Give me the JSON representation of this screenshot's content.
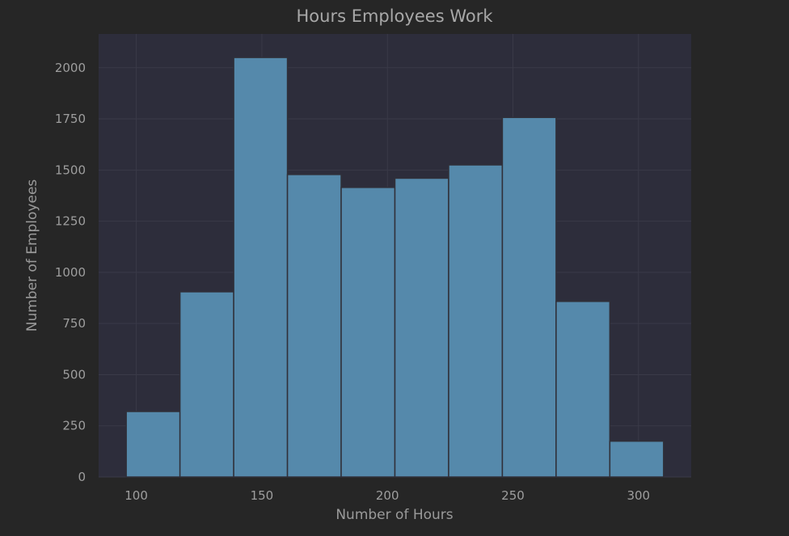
{
  "chart_data": {
    "type": "bar",
    "title": "Hours Employees Work",
    "xlabel": "Number of Hours",
    "ylabel": "Number of Employees",
    "bin_edges": [
      96,
      117.4,
      138.8,
      160.2,
      181.6,
      203,
      224.4,
      245.8,
      267.2,
      288.6,
      310
    ],
    "values": [
      320,
      905,
      2050,
      1478,
      1415,
      1460,
      1525,
      1757,
      858,
      175
    ],
    "xlim": [
      85,
      321
    ],
    "ylim": [
      0,
      2165
    ],
    "xticks": [
      "100",
      "150",
      "200",
      "250",
      "300"
    ],
    "xtick_values": [
      100,
      150,
      200,
      250,
      300
    ],
    "yticks": [
      "0",
      "250",
      "500",
      "750",
      "1000",
      "1250",
      "1500",
      "1750",
      "2000"
    ],
    "ytick_values": [
      0,
      250,
      500,
      750,
      1000,
      1250,
      1500,
      1750,
      2000
    ],
    "grid": true,
    "legend": "none",
    "colors": {
      "page_background": "#262626",
      "plot_background": "#2d2d3b",
      "grid": "#3a3a48",
      "bar_fill": "#5589ab",
      "bar_edge": "#303039"
    }
  }
}
